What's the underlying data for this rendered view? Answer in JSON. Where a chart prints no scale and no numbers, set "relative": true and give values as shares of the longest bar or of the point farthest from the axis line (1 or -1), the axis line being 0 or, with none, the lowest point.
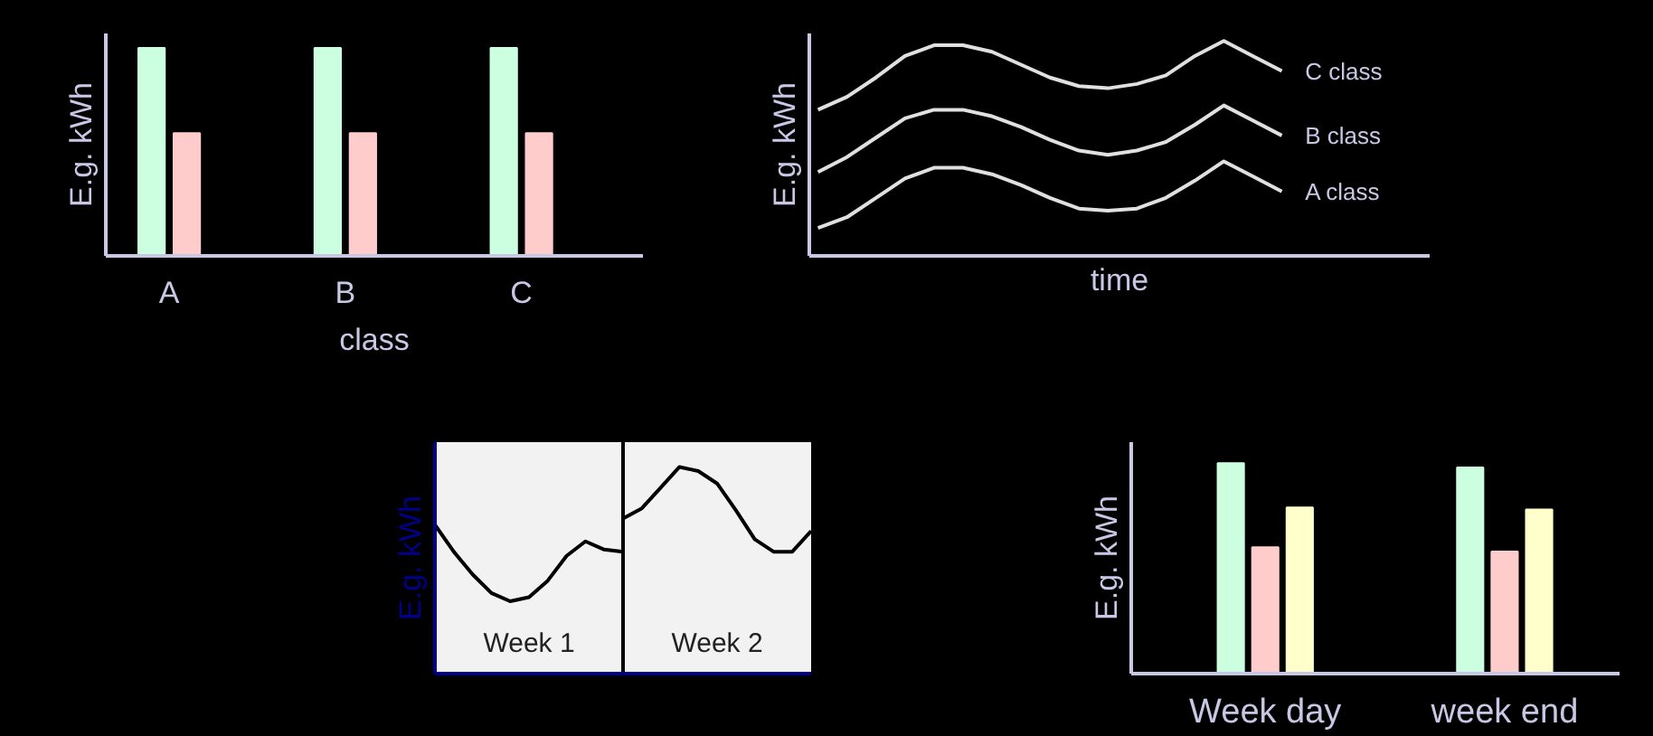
{
  "chart_data": [
    {
      "type": "bar",
      "categories": [
        "A",
        "B",
        "C"
      ],
      "xlabel": "class",
      "ylabel": "E.g. kWh",
      "relative": true,
      "grid": false,
      "series": [
        {
          "color": "#ccffe0",
          "values": [
            1,
            1,
            1
          ]
        },
        {
          "color": "#ffcccc",
          "values": [
            0.59,
            0.59,
            0.59
          ]
        }
      ]
    },
    {
      "type": "line",
      "categories": [
        null,
        null,
        null,
        null,
        null,
        null,
        null,
        null,
        null,
        null,
        null,
        null,
        null,
        null,
        null,
        null,
        null
      ],
      "xlabel": "time",
      "ylabel": "E.g. kWh",
      "relative": true,
      "grid": false,
      "series": [
        {
          "name": "C class",
          "color": "#e0e0e0",
          "values": [
            0.68,
            0.74,
            0.83,
            0.93,
            0.98,
            0.98,
            0.95,
            0.89,
            0.83,
            0.79,
            0.78,
            0.8,
            0.84,
            0.93,
            1.0,
            0.93,
            0.86
          ]
        },
        {
          "name": "B class",
          "color": "#e0e0e0",
          "values": [
            0.39,
            0.46,
            0.55,
            0.64,
            0.68,
            0.68,
            0.65,
            0.6,
            0.54,
            0.49,
            0.47,
            0.49,
            0.53,
            0.61,
            0.7,
            0.63,
            0.56
          ]
        },
        {
          "name": "A class",
          "color": "#e0e0e0",
          "values": [
            0.13,
            0.18,
            0.27,
            0.36,
            0.41,
            0.41,
            0.38,
            0.33,
            0.27,
            0.22,
            0.21,
            0.22,
            0.27,
            0.35,
            0.44,
            0.37,
            0.3
          ]
        }
      ]
    },
    {
      "type": "line",
      "categories": [
        null,
        null,
        null,
        null,
        null,
        null,
        null,
        null,
        null,
        null,
        null,
        null,
        null,
        null,
        null,
        null,
        null,
        null,
        null,
        null,
        null
      ],
      "ylabel": "E.g. kWh",
      "relative": true,
      "grid": false,
      "annotations": [
        "Week 1",
        "Week 2"
      ],
      "series": [
        {
          "color": "#000000",
          "values": [
            0.72,
            0.59,
            0.48,
            0.39,
            0.35,
            0.37,
            0.45,
            0.57,
            0.64,
            0.6,
            0.59,
            null,
            null,
            null,
            null,
            null,
            null,
            null,
            null,
            null,
            null
          ]
        },
        {
          "color": "#000000",
          "values": [
            null,
            null,
            null,
            null,
            null,
            null,
            null,
            null,
            null,
            null,
            0.75,
            0.8,
            0.9,
            1.0,
            0.98,
            0.92,
            0.79,
            0.65,
            0.59,
            0.59,
            0.69
          ]
        }
      ]
    },
    {
      "type": "bar",
      "categories": [
        "Week day",
        "week end"
      ],
      "ylabel": "E.g. kWh",
      "relative": true,
      "grid": false,
      "series": [
        {
          "color": "#ccffe0",
          "values": [
            1,
            0.98
          ]
        },
        {
          "color": "#ffcccc",
          "values": [
            0.6,
            0.58
          ]
        },
        {
          "color": "#ffffcc",
          "values": [
            0.79,
            0.78
          ]
        }
      ]
    }
  ]
}
